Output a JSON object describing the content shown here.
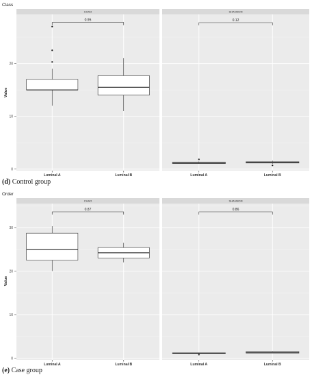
{
  "figure_d": {
    "caption_letter": "(d)",
    "caption_text": "Control group"
  },
  "figure_e": {
    "caption_letter": "(e)",
    "caption_text": "Case group"
  },
  "chart_data": [
    {
      "type": "boxplot",
      "title": "Class",
      "ylabel": "Value",
      "ylim": [
        -0.3,
        29.3
      ],
      "yticks": [
        0,
        10,
        20
      ],
      "grid": true,
      "categories": [
        "Luminal A",
        "Luminal B"
      ],
      "facets": [
        {
          "name": "CHAO",
          "pvalue": "0.95",
          "boxes": [
            {
              "category": "Luminal A",
              "min": 12,
              "q1": 15,
              "median": 15,
              "q3": 17,
              "max": 19,
              "outliers": [
                20.3,
                22.5,
                27
              ]
            },
            {
              "category": "Luminal B",
              "min": 11,
              "q1": 14,
              "median": 15.5,
              "q3": 17.7,
              "max": 21,
              "outliers": []
            }
          ]
        },
        {
          "name": "SHANNON",
          "pvalue": "0.12",
          "boxes": [
            {
              "category": "Luminal A",
              "min": 1.0,
              "q1": 1.05,
              "median": 1.15,
              "q3": 1.3,
              "max": 1.45,
              "outliers": [
                1.85
              ]
            },
            {
              "category": "Luminal B",
              "min": 1.0,
              "q1": 1.15,
              "median": 1.25,
              "q3": 1.4,
              "max": 1.6,
              "outliers": [
                0.7
              ]
            }
          ]
        }
      ]
    },
    {
      "type": "boxplot",
      "title": "Order",
      "ylabel": "Value",
      "ylim": [
        -0.4,
        35.5
      ],
      "yticks": [
        0,
        10,
        20,
        30
      ],
      "grid": true,
      "categories": [
        "Luminal A",
        "Luminal B"
      ],
      "facets": [
        {
          "name": "CHAO",
          "pvalue": "0.87",
          "boxes": [
            {
              "category": "Luminal A",
              "min": 20,
              "q1": 22.5,
              "median": 25,
              "q3": 28.7,
              "max": 30.3,
              "outliers": []
            },
            {
              "category": "Luminal B",
              "min": 22,
              "q1": 23,
              "median": 24.2,
              "q3": 25.4,
              "max": 26.5,
              "outliers": []
            }
          ]
        },
        {
          "name": "SHANNON",
          "pvalue": "0.86",
          "boxes": [
            {
              "category": "Luminal A",
              "min": 1.15,
              "q1": 1.15,
              "median": 1.15,
              "q3": 1.2,
              "max": 1.25,
              "outliers": [
                0.8
              ]
            },
            {
              "category": "Luminal B",
              "min": 1.1,
              "q1": 1.15,
              "median": 1.3,
              "q3": 1.5,
              "max": 1.6,
              "outliers": []
            }
          ]
        }
      ]
    }
  ]
}
